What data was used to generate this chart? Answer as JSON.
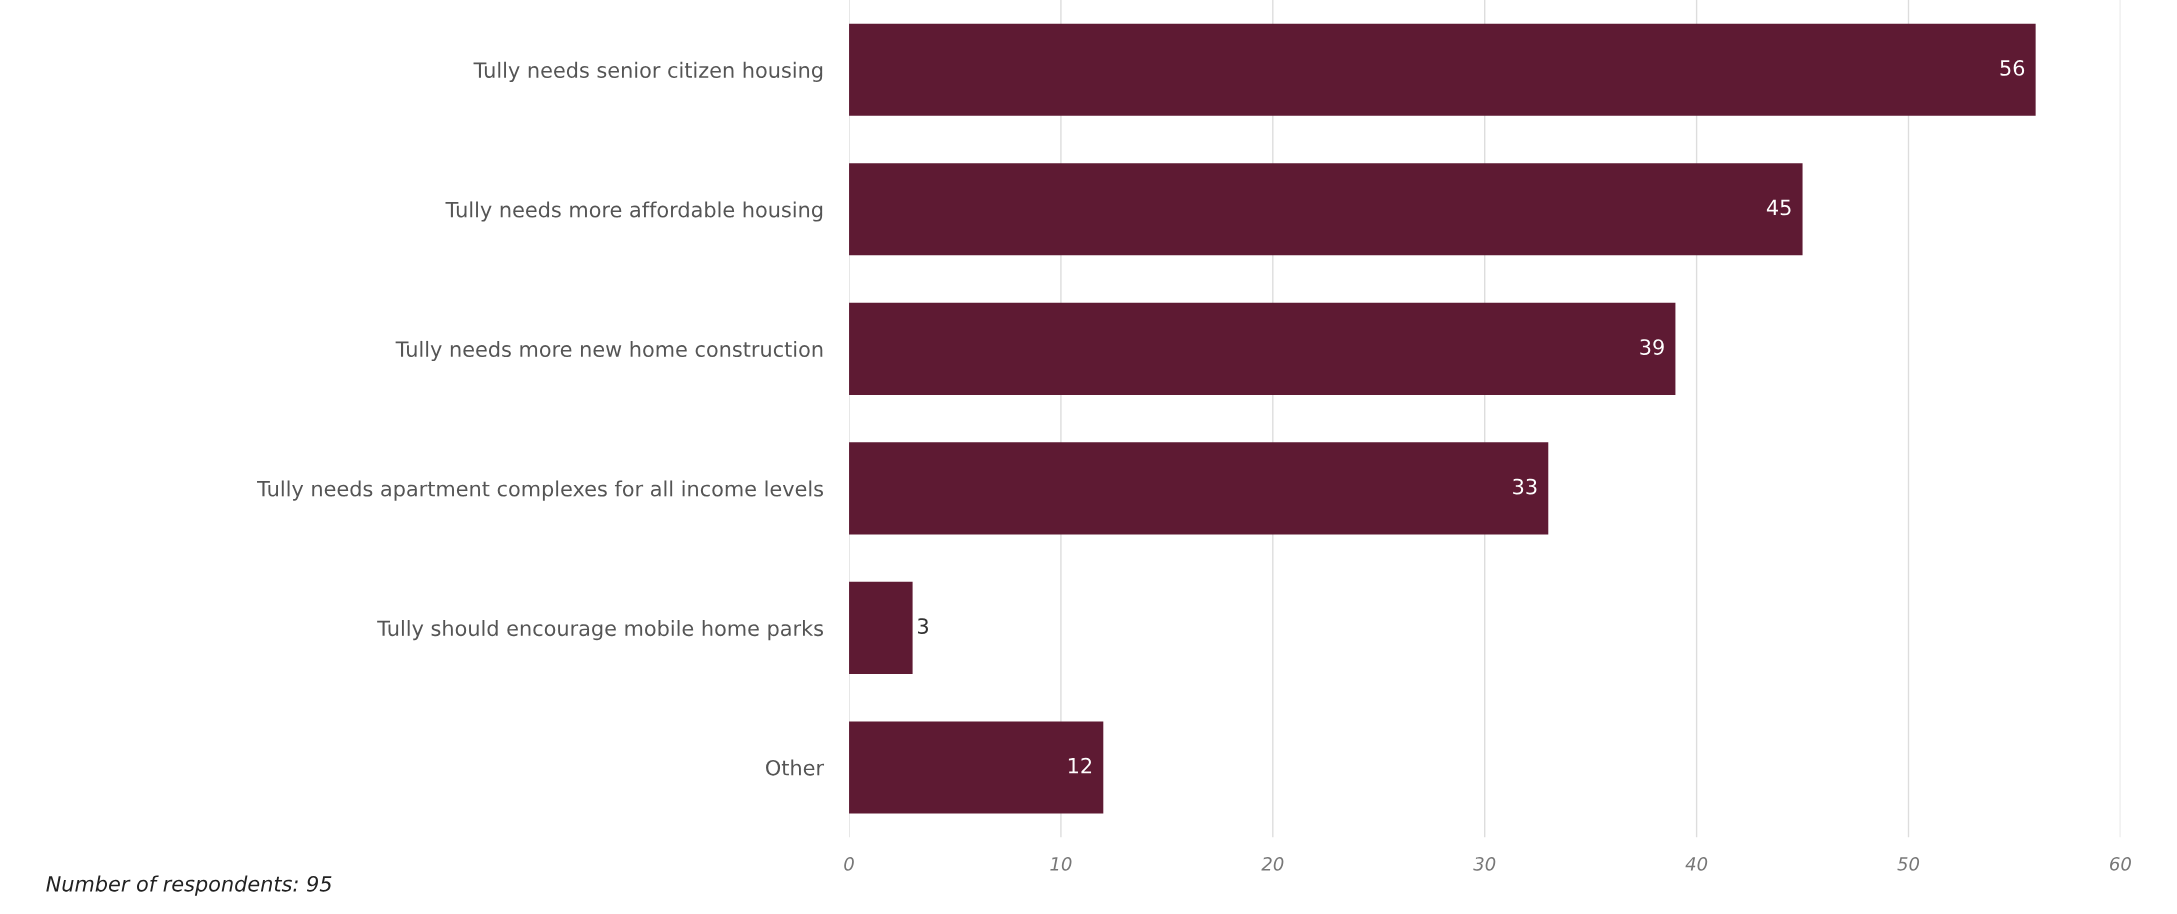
{
  "chart_data": {
    "type": "bar",
    "orientation": "horizontal",
    "categories": [
      "Tully needs senior citizen housing",
      "Tully needs more affordable housing",
      "Tully needs more new home construction",
      "Tully needs apartment complexes for all income levels",
      "Tully should encourage mobile home parks",
      "Other"
    ],
    "values": [
      56,
      45,
      39,
      33,
      3,
      12
    ],
    "color": "#5e1a33",
    "xlim": [
      0,
      60
    ],
    "xticks": [
      0,
      10,
      20,
      30,
      40,
      50,
      60
    ],
    "grid": "x",
    "data_labels": true,
    "annotations": [
      "Number of respondents: 95"
    ]
  }
}
